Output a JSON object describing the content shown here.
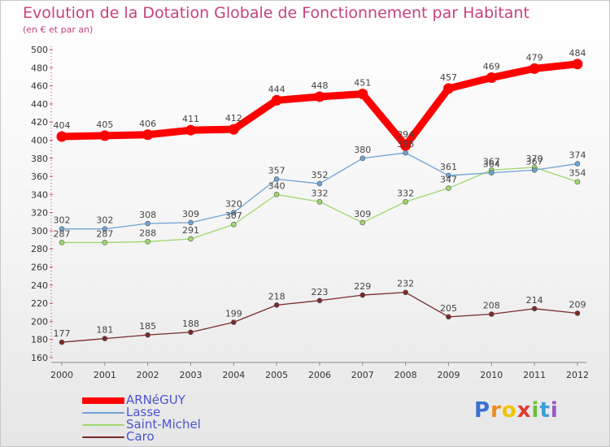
{
  "header": {
    "title": "Evolution de la Dotation Globale de Fonctionnement par Habitant",
    "subtitle": "(en € et par an)"
  },
  "brand": {
    "letters": [
      "P",
      "r",
      "o",
      "x",
      "i",
      "t",
      "i"
    ],
    "colors": [
      "#3b6fd3",
      "#f08a1c",
      "#f2c400",
      "#e03a2f",
      "#6bbf3a",
      "#3aa0d8",
      "#9a55c5"
    ]
  },
  "chart_data": {
    "type": "line",
    "title": "Evolution de la Dotation Globale de Fonctionnement par Habitant",
    "subtitle": "(en € et par an)",
    "x": [
      "2000",
      "2001",
      "2002",
      "2003",
      "2004",
      "2005",
      "2006",
      "2007",
      "2008",
      "2009",
      "2010",
      "2011",
      "2012"
    ],
    "ylim": [
      160,
      500
    ],
    "yticks": [
      160,
      180,
      200,
      220,
      240,
      260,
      280,
      300,
      320,
      340,
      360,
      380,
      400,
      420,
      440,
      460,
      480,
      500
    ],
    "grid": false,
    "legend_position": "bottom-left",
    "series": [
      {
        "name": "ARNéGUY",
        "color": "#ff0000",
        "values": [
          404,
          405,
          406,
          411,
          412,
          444,
          448,
          451,
          394,
          457,
          469,
          479,
          484
        ]
      },
      {
        "name": "Lasse",
        "color": "#6fa3d4",
        "values": [
          302,
          302,
          308,
          309,
          320,
          357,
          352,
          380,
          386,
          361,
          364,
          367,
          374
        ]
      },
      {
        "name": "Saint-Michel",
        "color": "#9fd86e",
        "values": [
          287,
          287,
          288,
          291,
          307,
          340,
          332,
          309,
          332,
          347,
          367,
          370,
          354
        ]
      },
      {
        "name": "Caro",
        "color": "#7a2a2a",
        "values": [
          177,
          181,
          185,
          188,
          199,
          218,
          223,
          229,
          232,
          205,
          208,
          214,
          209
        ]
      }
    ]
  }
}
